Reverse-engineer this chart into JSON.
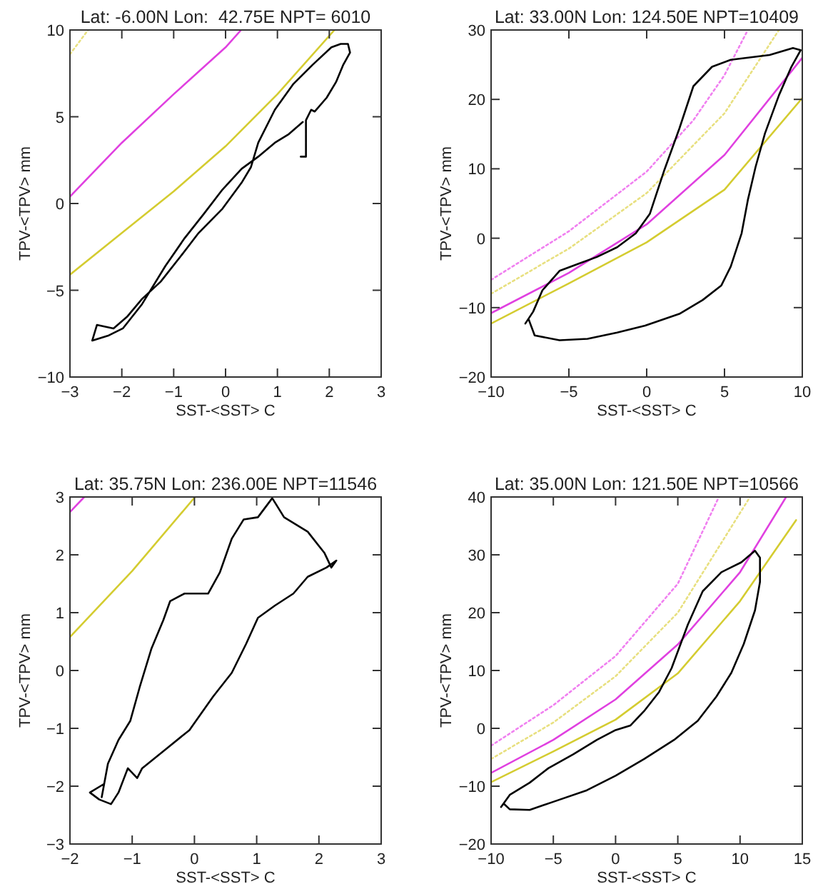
{
  "chart_data": [
    {
      "type": "line",
      "title": "Lat: -6.00N Lon:  42.75E NPT= 6010",
      "xlabel": "SST-<SST> C",
      "ylabel": "TPV-<TPV> mm",
      "xlim": [
        -3,
        3
      ],
      "xticks": [
        -3,
        -2,
        -1,
        0,
        1,
        2,
        3
      ],
      "ylim": [
        -10,
        10
      ],
      "yticks": [
        -10,
        -5,
        0,
        5,
        10
      ],
      "grid": false,
      "series": [
        {
          "color": "#e040e0",
          "x": [
            -3,
            -2,
            -1,
            0,
            0.3
          ],
          "values": [
            0.4,
            3.5,
            6.3,
            9.0,
            10
          ]
        },
        {
          "color": "#d4cc30",
          "x": [
            -3,
            -2,
            -1,
            0,
            1,
            2.1
          ],
          "values": [
            -4.1,
            -1.7,
            0.7,
            3.3,
            6.3,
            10
          ]
        },
        {
          "color": "#e8e080",
          "line_style": "dotted",
          "x": [
            -3,
            -2.65
          ],
          "values": [
            8.6,
            10
          ]
        },
        {
          "color": "#000000",
          "x": [
            1.45,
            1.55,
            1.55,
            1.65,
            1.72,
            1.95,
            2.13,
            2.27,
            2.4,
            2.36,
            2.22,
            2.04,
            1.68,
            1.31,
            0.95,
            0.63,
            0.49,
            0.31,
            -0.06,
            -0.52,
            -0.88,
            -1.25,
            -1.61,
            -1.89,
            -2.16,
            -2.48,
            -2.57,
            -2.25,
            -1.98,
            -1.61,
            -1.16,
            -0.79,
            -0.42,
            -0.06,
            0.31,
            0.63,
            0.95,
            1.22,
            1.49
          ],
          "values": [
            2.7,
            2.7,
            4.8,
            5.4,
            5.3,
            6.1,
            7.0,
            8.0,
            8.7,
            9.2,
            9.2,
            9.0,
            8.0,
            6.9,
            5.4,
            3.5,
            2.1,
            1.2,
            -0.3,
            -1.7,
            -3.1,
            -4.5,
            -5.5,
            -6.5,
            -7.2,
            -7.0,
            -7.9,
            -7.6,
            -7.2,
            -5.8,
            -3.6,
            -2.0,
            -0.6,
            0.8,
            2.0,
            2.7,
            3.5,
            4.0,
            4.7
          ]
        }
      ]
    },
    {
      "type": "line",
      "title": "Lat: 33.00N Lon: 124.50E NPT=10409",
      "xlabel": "SST-<SST> C",
      "ylabel": "TPV-<TPV> mm",
      "xlim": [
        -10,
        10
      ],
      "xticks": [
        -10,
        -5,
        0,
        5,
        10
      ],
      "ylim": [
        -20,
        30
      ],
      "yticks": [
        -20,
        -10,
        0,
        10,
        20,
        30
      ],
      "grid": false,
      "series": [
        {
          "color": "#f080f0",
          "line_style": "dotted",
          "x": [
            -10,
            -5,
            0,
            3,
            5,
            6.5
          ],
          "values": [
            -6,
            1,
            9.6,
            17,
            23.5,
            30
          ]
        },
        {
          "color": "#e8e080",
          "line_style": "dotted",
          "x": [
            -10,
            -5,
            0,
            5,
            8.5
          ],
          "values": [
            -8,
            -1.5,
            6.5,
            18,
            30
          ]
        },
        {
          "color": "#e040e0",
          "x": [
            -10,
            -5,
            0,
            5,
            10
          ],
          "values": [
            -10.8,
            -5,
            2,
            12,
            26
          ]
        },
        {
          "color": "#d4cc30",
          "x": [
            -10,
            -5,
            0,
            5,
            10
          ],
          "values": [
            -12.3,
            -6.5,
            -0.6,
            7,
            20.2
          ]
        },
        {
          "color": "#000000",
          "x": [
            -7.8,
            -7.3,
            -6.7,
            -5.6,
            -4.4,
            -3.2,
            -1.9,
            -0.7,
            0.2,
            1.1,
            2.1,
            3.0,
            4.2,
            5.4,
            7.9,
            9.4,
            9.9,
            9.3,
            8.5,
            7.6,
            7.0,
            6.5,
            6.1,
            5.4,
            4.8,
            3.6,
            2.1,
            -0.1,
            -1.9,
            -3.8,
            -5.6,
            -7.2,
            -7.6
          ],
          "values": [
            -12.3,
            -10.6,
            -7.5,
            -4.7,
            -3.7,
            -2.7,
            -1.3,
            0.7,
            3.5,
            9.6,
            15.8,
            21.9,
            24.7,
            25.7,
            26.4,
            27.4,
            27.1,
            24.7,
            20.6,
            15.1,
            10.3,
            5.5,
            0.7,
            -4.1,
            -6.8,
            -8.9,
            -10.9,
            -12.6,
            -13.6,
            -14.5,
            -14.7,
            -14.0,
            -11.6
          ]
        }
      ]
    },
    {
      "type": "line",
      "title": "Lat: 35.75N Lon: 236.00E NPT=11546",
      "xlabel": "SST-<SST> C",
      "ylabel": "TPV-<TPV> mm",
      "xlim": [
        -2,
        3
      ],
      "xticks": [
        -2,
        -1,
        0,
        1,
        2,
        3
      ],
      "ylim": [
        -3,
        3
      ],
      "yticks": [
        -3,
        -2,
        -1,
        0,
        1,
        2,
        3
      ],
      "grid": false,
      "series": [
        {
          "color": "#e040e0",
          "x": [
            -2,
            -1.77
          ],
          "values": [
            2.74,
            3
          ]
        },
        {
          "color": "#d4cc30",
          "x": [
            -2,
            -1,
            0.01
          ],
          "values": [
            0.58,
            1.72,
            3
          ]
        },
        {
          "color": "#000000",
          "x": [
            -1.49,
            -1.39,
            -1.22,
            -1.03,
            -0.88,
            -0.69,
            -0.5,
            -0.39,
            -0.16,
            0.22,
            0.41,
            0.6,
            0.79,
            1.02,
            1.25,
            1.44,
            1.82,
            2.09,
            2.2,
            2.28,
            2.12,
            1.82,
            1.59,
            1.29,
            1.02,
            0.83,
            0.6,
            0.3,
            -0.08,
            -0.46,
            -0.84,
            -0.92,
            -1.07,
            -1.22,
            -1.34,
            -1.53,
            -1.68,
            -1.45
          ],
          "values": [
            -2.19,
            -1.61,
            -1.2,
            -0.87,
            -0.29,
            0.38,
            0.87,
            1.2,
            1.33,
            1.33,
            1.7,
            2.28,
            2.61,
            2.65,
            2.98,
            2.65,
            2.4,
            2.03,
            1.78,
            1.9,
            1.78,
            1.62,
            1.33,
            1.12,
            0.91,
            0.46,
            -0.04,
            -0.45,
            -1.03,
            -1.36,
            -1.69,
            -1.86,
            -1.69,
            -2.11,
            -2.31,
            -2.23,
            -2.11,
            -1.96
          ]
        }
      ]
    },
    {
      "type": "line",
      "title": "Lat: 35.00N Lon: 121.50E NPT=10566",
      "xlabel": "SST-<SST> C",
      "ylabel": "TPV-<TPV> mm",
      "xlim": [
        -10,
        15
      ],
      "xticks": [
        -10,
        -5,
        0,
        5,
        10,
        15
      ],
      "ylim": [
        -20,
        40
      ],
      "yticks": [
        -20,
        -10,
        0,
        10,
        20,
        30,
        40
      ],
      "grid": false,
      "series": [
        {
          "color": "#f080f0",
          "line_style": "dotted",
          "x": [
            -10,
            -5,
            0,
            5,
            8.3
          ],
          "values": [
            -3,
            4,
            12.5,
            25,
            40
          ]
        },
        {
          "color": "#e8e080",
          "line_style": "dotted",
          "x": [
            -10,
            -5,
            0,
            5,
            10.8
          ],
          "values": [
            -5.3,
            1,
            9,
            20,
            40
          ]
        },
        {
          "color": "#e040e0",
          "x": [
            -10,
            -5,
            0,
            5,
            10,
            13.7
          ],
          "values": [
            -7.7,
            -2,
            5,
            14.5,
            27,
            40
          ]
        },
        {
          "color": "#d4cc30",
          "x": [
            -10,
            -5,
            0,
            5,
            10,
            14.5
          ],
          "values": [
            -9.3,
            -4,
            1.5,
            9.5,
            22,
            36
          ]
        },
        {
          "color": "#000000",
          "x": [
            -9.2,
            -8.5,
            -6.9,
            -5.4,
            -3.4,
            -1.5,
            0,
            1.2,
            2.3,
            3.5,
            4.5,
            5.8,
            7.0,
            8.5,
            10.1,
            11.2,
            11.6,
            11.6,
            11.2,
            10.3,
            9.3,
            8.1,
            6.6,
            4.7,
            2.3,
            0,
            -2.3,
            -5.0,
            -6.9,
            -8.5,
            -9.0
          ],
          "values": [
            -13.6,
            -11.5,
            -9.4,
            -6.9,
            -4.5,
            -2.0,
            -0.3,
            0.5,
            3.0,
            6.3,
            10.4,
            17.9,
            23.7,
            27,
            28.7,
            30.7,
            29.5,
            25.3,
            20.4,
            14.6,
            9.6,
            5.5,
            1.3,
            -2.0,
            -5.3,
            -8.2,
            -10.7,
            -12.7,
            -14.1,
            -14.0,
            -13.0
          ]
        }
      ]
    }
  ]
}
